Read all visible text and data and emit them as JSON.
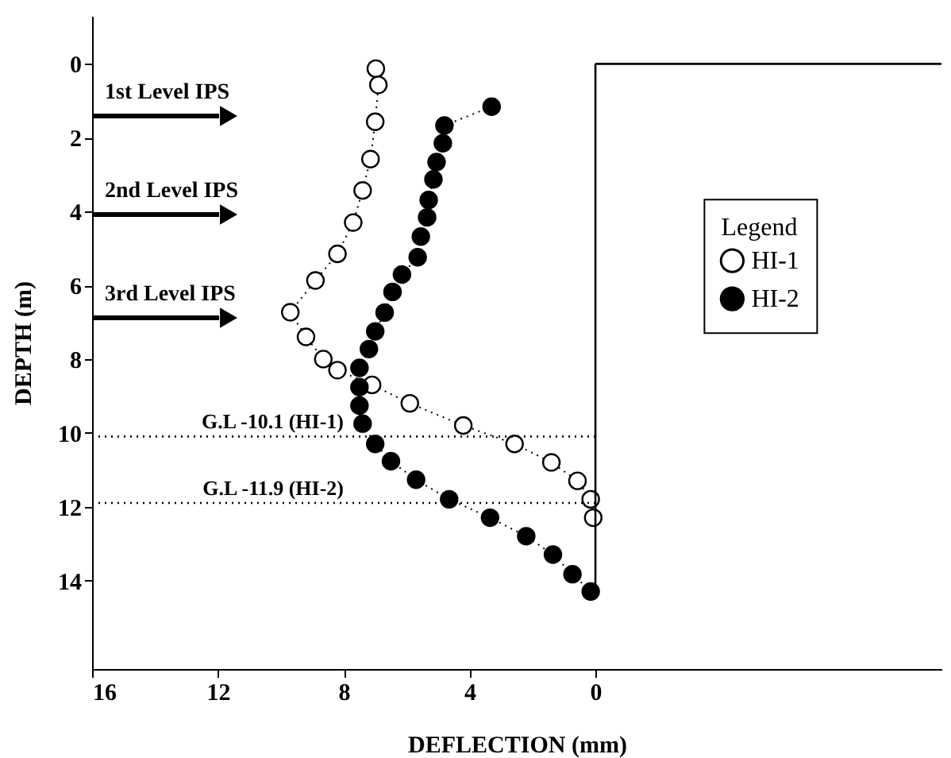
{
  "chart_data": {
    "type": "line",
    "xlabel": "DEFLECTION (mm)",
    "ylabel": "DEPTH (m)",
    "legend_title": "Legend",
    "legend": "right",
    "marker": "circle",
    "line_style": "dotted",
    "grid": false,
    "xlim": [
      16,
      -11
    ],
    "xticks": [
      16,
      12,
      8,
      4,
      0
    ],
    "ylim": [
      16.4,
      -1.3
    ],
    "yticks": [
      0,
      2,
      4,
      6,
      8,
      10,
      12,
      14
    ],
    "series": [
      {
        "name": "HI-1",
        "color": "#000000",
        "x": [
          6.98,
          6.9,
          7.0,
          7.15,
          7.4,
          7.7,
          8.2,
          8.9,
          9.7,
          9.2,
          8.65,
          8.2,
          7.1,
          5.9,
          4.2,
          2.57,
          1.4,
          0.57,
          0.15,
          0.07
        ],
        "values": [
          0.13,
          0.57,
          1.57,
          2.58,
          3.43,
          4.3,
          5.15,
          5.87,
          6.73,
          7.4,
          8.0,
          8.3,
          8.7,
          9.2,
          9.8,
          10.3,
          10.8,
          11.3,
          11.8,
          12.3
        ]
      },
      {
        "name": "HI-2",
        "color": "#000000",
        "x": [
          3.3,
          4.8,
          4.85,
          5.05,
          5.15,
          5.3,
          5.35,
          5.55,
          5.65,
          6.15,
          6.45,
          6.7,
          7.0,
          7.2,
          7.5,
          7.5,
          7.5,
          7.4,
          7.0,
          6.5,
          5.7,
          4.65,
          3.35,
          2.2,
          1.35,
          0.73,
          0.15
        ],
        "values": [
          1.16,
          1.67,
          2.15,
          2.66,
          3.13,
          3.69,
          4.16,
          4.68,
          5.24,
          5.71,
          6.18,
          6.74,
          7.25,
          7.73,
          8.24,
          8.76,
          9.26,
          9.75,
          10.3,
          10.77,
          11.27,
          11.8,
          12.3,
          12.8,
          13.3,
          13.83,
          14.3
        ]
      }
    ],
    "ref_lines": [
      {
        "axis": "x",
        "value": 0,
        "label": null
      },
      {
        "axis": "y",
        "value": 0,
        "label": null
      },
      {
        "axis": "y",
        "value": 10.1,
        "label": "G.L -10.1 (HI-1)",
        "line_style": "dotted"
      },
      {
        "axis": "y",
        "value": 11.9,
        "label": "G.L -11.9 (HI-2)",
        "line_style": "dotted"
      }
    ],
    "annotations": [
      "1st Level IPS",
      "2nd Level IPS",
      "3rd Level IPS"
    ]
  }
}
